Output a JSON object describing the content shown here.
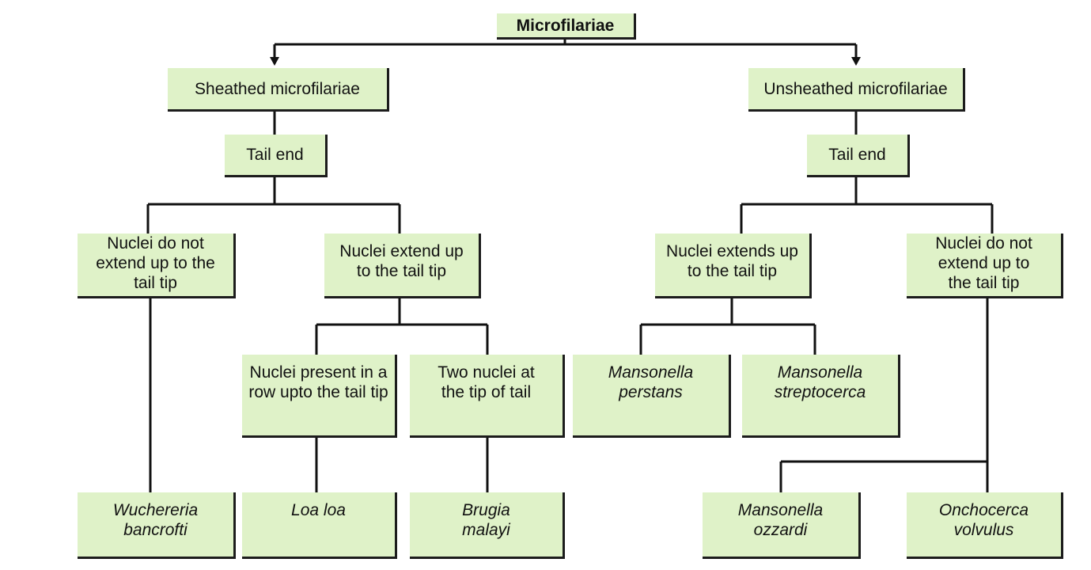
{
  "root": "Microfilariae",
  "sheathed": {
    "label": "Sheathed microfilariae",
    "tail": "Tail end",
    "nuclei_not_extend": "Nuclei do not extend up to the tail tip",
    "nuclei_extend": "Nuclei extend up to the tail tip",
    "row_upto_tip": "Nuclei present in a row upto the tail tip",
    "two_nuclei": "Two nuclei at the tip of tail",
    "species": {
      "wuchereria": "Wuchereria bancrofti",
      "loa": "Loa loa",
      "brugia": "Brugia malayi"
    }
  },
  "unsheathed": {
    "label": "Unsheathed microfilariae",
    "tail": "Tail end",
    "nuclei_extend": "Nuclei extends up to the tail tip",
    "nuclei_not_extend": "Nuclei do not extend up to the tail tip",
    "species": {
      "perstans": "Mansonella perstans",
      "streptocerca": "Mansonella streptocerca",
      "ozzardi": "Mansonella ozzardi",
      "onchocerca": "Onchocerca volvulus"
    }
  },
  "colors": {
    "node_fill": "#dff2c8",
    "line": "#111111"
  }
}
